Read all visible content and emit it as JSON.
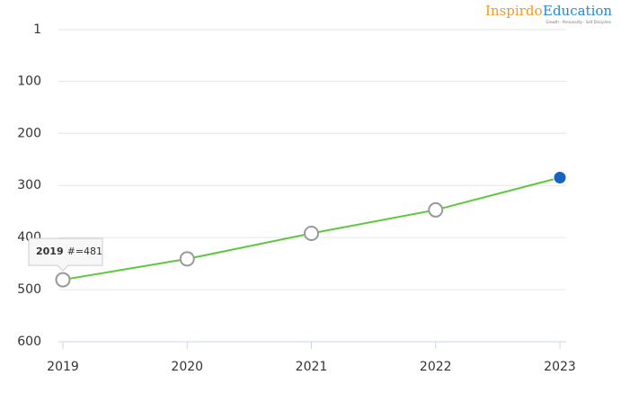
{
  "chart_data": {
    "type": "line",
    "logo": {
      "brand": "Inspirdo",
      "brand_rest": "Education",
      "tagline": "Growth - Personality - Self Discipline"
    },
    "categories": [
      "2019",
      "2020",
      "2021",
      "2022",
      "2023"
    ],
    "series": [
      {
        "name": "#",
        "color": "#5cc83c",
        "values": [
          481,
          441,
          392,
          347,
          285
        ]
      }
    ],
    "marker_color": "#1565c0",
    "ylim": [
      600,
      1
    ],
    "yticks": [
      1,
      100,
      200,
      300,
      400,
      500,
      600
    ],
    "grid": true,
    "tooltip": {
      "x": "2019",
      "label": "#=481"
    }
  }
}
